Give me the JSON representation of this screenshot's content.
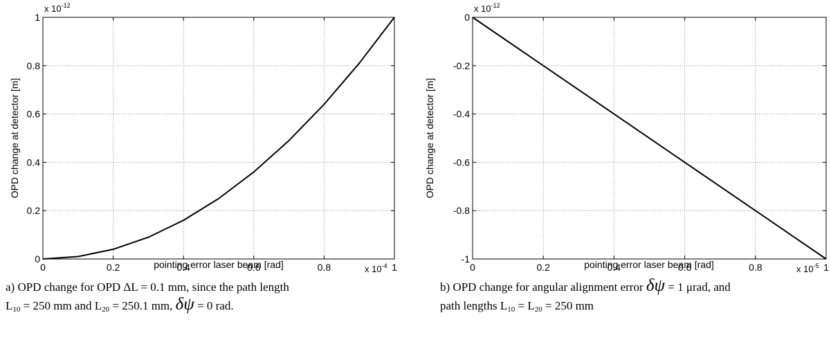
{
  "chart_data": [
    {
      "type": "line",
      "title": "",
      "xlabel": "pointing error laser beam [rad]",
      "ylabel": "OPD change at detector [m]",
      "xlim": [
        0,
        1
      ],
      "ylim": [
        0,
        1
      ],
      "x_exponent": "x 10",
      "x_exponent_power": "-4",
      "y_exponent": "x 10",
      "y_exponent_power": "-12",
      "xticks": [
        "0",
        "0.2",
        "0.4",
        "0.6",
        "0.8",
        "1"
      ],
      "yticks": [
        "0",
        "0.2",
        "0.4",
        "0.6",
        "0.8",
        "1"
      ],
      "grid": true,
      "series": [
        {
          "x": [
            0,
            0.1,
            0.2,
            0.3,
            0.4,
            0.5,
            0.6,
            0.7,
            0.8,
            0.9,
            1.0
          ],
          "y": [
            0,
            0.01,
            0.04,
            0.09,
            0.16,
            0.25,
            0.36,
            0.49,
            0.64,
            0.81,
            1.0
          ]
        }
      ],
      "caption": {
        "line1": "a) OPD change for OPD ΔL = 0.1 mm, since the path length",
        "l10": "L",
        "l10_sub": "10",
        "mid": " = 250 mm and L",
        "l20_sub": "20",
        "end_before_psi": " = 250.1 mm,  ",
        "psi": "δψ",
        "end_after_psi": "  = 0 rad."
      }
    },
    {
      "type": "line",
      "title": "",
      "xlabel": "pointing error laser beam [rad]",
      "ylabel": "OPD change at detector [m]",
      "xlim": [
        0,
        1
      ],
      "ylim": [
        -1,
        0
      ],
      "x_exponent": "x 10",
      "x_exponent_power": "-5",
      "y_exponent": "x 10",
      "y_exponent_power": "-12",
      "xticks": [
        "0",
        "0.2",
        "0.4",
        "0.6",
        "0.8",
        "1"
      ],
      "yticks": [
        "-1",
        "-0.8",
        "-0.6",
        "-0.4",
        "-0.2",
        "0"
      ],
      "grid": true,
      "series": [
        {
          "x": [
            0,
            0.2,
            0.4,
            0.6,
            0.8,
            1.0
          ],
          "y": [
            0,
            -0.2,
            -0.4,
            -0.6,
            -0.8,
            -1.0
          ]
        }
      ],
      "caption": {
        "line1_before_psi": "b) OPD change for angular alignment error  ",
        "psi": "δψ",
        "line1_after_psi": "  = 1 μrad, and",
        "line2_start": "path lengths L",
        "l10_sub": "10",
        "line2_mid": " = L",
        "l20_sub": "20",
        "line2_end": " = 250 mm"
      }
    }
  ]
}
